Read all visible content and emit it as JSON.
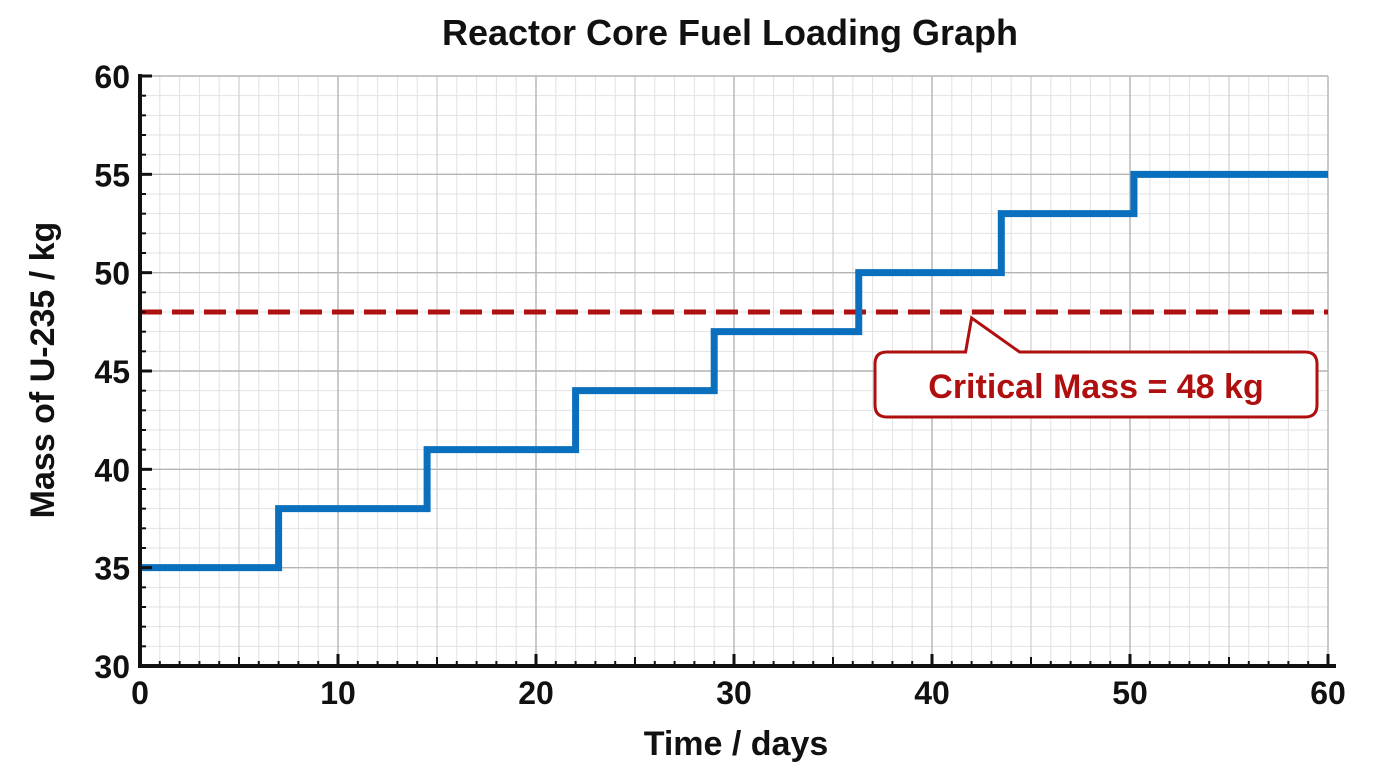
{
  "chart_data": {
    "type": "line",
    "step": "post",
    "title": "Reactor Core Fuel Loading Graph",
    "xlabel": "Time / days",
    "ylabel": "Mass of U-235 / kg",
    "xlim": [
      0,
      60
    ],
    "ylim": [
      30,
      60
    ],
    "x_major_step": 10,
    "y_major_step": 5,
    "x_ticks": [
      0,
      10,
      20,
      30,
      40,
      50,
      60
    ],
    "y_ticks": [
      30,
      35,
      40,
      45,
      50,
      55,
      60
    ],
    "grid": true,
    "series": [
      {
        "x": [
          0,
          7,
          14.5,
          22,
          29,
          36.3,
          43.5,
          50.2,
          60
        ],
        "y": [
          35,
          38,
          41,
          44,
          47,
          50,
          53,
          55,
          55
        ]
      }
    ],
    "reference_line": {
      "y": 48,
      "style": "dashed",
      "label": "Critical Mass = 48 kg",
      "pointer_x": 42
    },
    "colors": {
      "series": "#0a6fbd",
      "reference": "#b00f0f",
      "grid_major": "#b4b4b4",
      "grid_minor": "#e2e2e2",
      "axis": "#111111"
    }
  }
}
